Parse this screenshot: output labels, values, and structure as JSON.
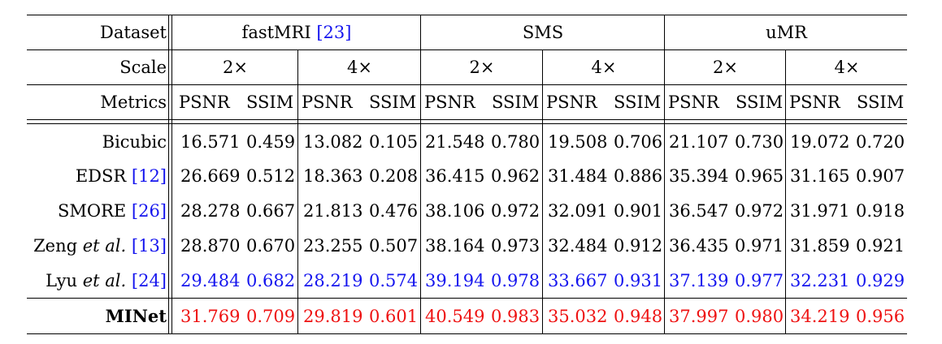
{
  "header": {
    "dataset_label": "Dataset",
    "scale_label": "Scale",
    "metrics_label": "Metrics",
    "datasets": [
      {
        "name": "fastMRI ",
        "cite": "[23]"
      },
      {
        "name": "SMS",
        "cite": ""
      },
      {
        "name": "uMR",
        "cite": ""
      }
    ],
    "scales": [
      "2×",
      "4×",
      "2×",
      "4×",
      "2×",
      "4×"
    ],
    "metrics": [
      "PSNR",
      "SSIM"
    ]
  },
  "rows": [
    {
      "method": "Bicubic",
      "italic": "",
      "cite": "",
      "values": [
        "16.571",
        "0.459",
        "13.082",
        "0.105",
        "21.548",
        "0.780",
        "19.508",
        "0.706",
        "21.107",
        "0.730",
        "19.072",
        "0.720"
      ]
    },
    {
      "method": "EDSR ",
      "italic": "",
      "cite": "[12]",
      "values": [
        "26.669",
        "0.512",
        "18.363",
        "0.208",
        "36.415",
        "0.962",
        "31.484",
        "0.886",
        "35.394",
        "0.965",
        "31.165",
        "0.907"
      ]
    },
    {
      "method": "SMORE ",
      "italic": "",
      "cite": "[26]",
      "values": [
        "28.278",
        "0.667",
        "21.813",
        "0.476",
        "38.106",
        "0.972",
        "32.091",
        "0.901",
        "36.547",
        "0.972",
        "31.971",
        "0.918"
      ]
    },
    {
      "method": "Zeng ",
      "italic": "et al.",
      "cite": "[13]",
      "values": [
        "28.870",
        "0.670",
        "23.255",
        "0.507",
        "38.164",
        "0.973",
        "32.484",
        "0.912",
        "36.435",
        "0.971",
        "31.859",
        "0.921"
      ]
    },
    {
      "method": "Lyu ",
      "italic": "et al.",
      "cite": "[24]",
      "values": [
        "29.484",
        "0.682",
        "28.219",
        "0.574",
        "39.194",
        "0.978",
        "33.667",
        "0.931",
        "37.139",
        "0.977",
        "32.231",
        "0.929"
      ]
    },
    {
      "method": "MINet",
      "italic": "",
      "cite": "",
      "values": [
        "31.769",
        "0.709",
        "29.819",
        "0.601",
        "40.549",
        "0.983",
        "35.032",
        "0.948",
        "37.997",
        "0.980",
        "34.219",
        "0.956"
      ]
    }
  ],
  "colors": {
    "second_best": "#1515ee",
    "best": "#ee1111",
    "citation": "#1515ee"
  }
}
